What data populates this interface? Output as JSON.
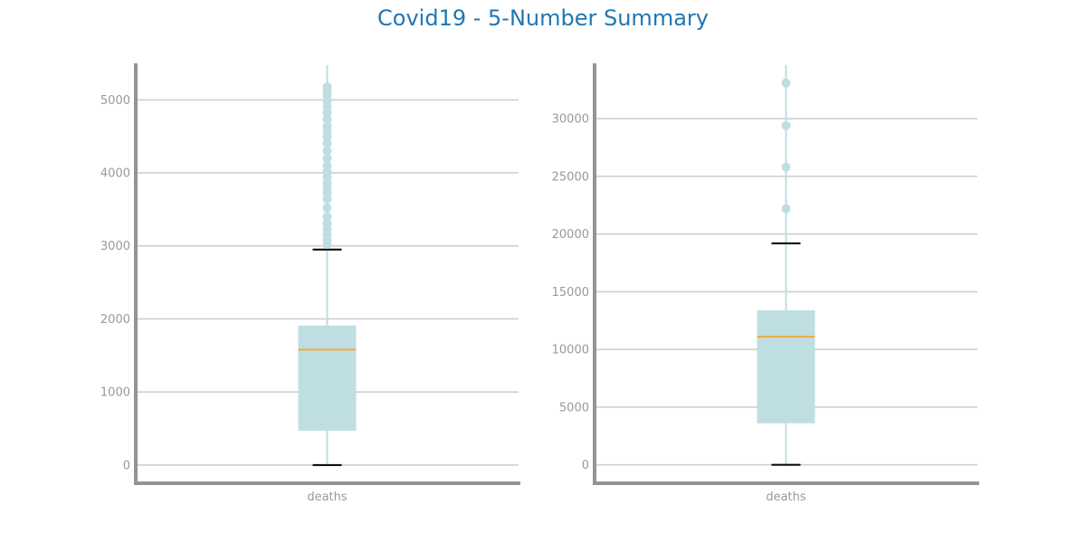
{
  "figure": {
    "title": "Covid19 - 5-Number Summary"
  },
  "colors": {
    "title": "#1f77b4",
    "box": "#bfdee1",
    "median": "#f0a93f",
    "whisker_cap": "#000000",
    "outlier": "#bfdee1",
    "grid": "#cccccc",
    "axis_spine": "#949494",
    "tick_label": "#999999"
  },
  "chart_data": [
    {
      "type": "box",
      "categories": [
        "deaths"
      ],
      "ylim": [
        -250,
        5500
      ],
      "yticks": [
        0,
        1000,
        2000,
        3000,
        4000,
        5000
      ],
      "grid": true,
      "box": {
        "whisker_low": 0,
        "q1": 470,
        "median": 1580,
        "q3": 1910,
        "whisker_high": 2950
      },
      "outliers": [
        3020,
        3080,
        3150,
        3230,
        3310,
        3400,
        3520,
        3640,
        3720,
        3790,
        3860,
        3940,
        4020,
        4100,
        4200,
        4300,
        4400,
        4490,
        4570,
        4640,
        4730,
        4820,
        4900,
        4980,
        5060,
        5120,
        5180
      ]
    },
    {
      "type": "box",
      "categories": [
        "deaths"
      ],
      "ylim": [
        -1600,
        34800
      ],
      "yticks": [
        0,
        5000,
        10000,
        15000,
        20000,
        25000,
        30000
      ],
      "grid": true,
      "box": {
        "whisker_low": 0,
        "q1": 3600,
        "median": 11100,
        "q3": 13400,
        "whisker_high": 19200
      },
      "outliers": [
        22200,
        25800,
        29400,
        33100
      ]
    }
  ]
}
